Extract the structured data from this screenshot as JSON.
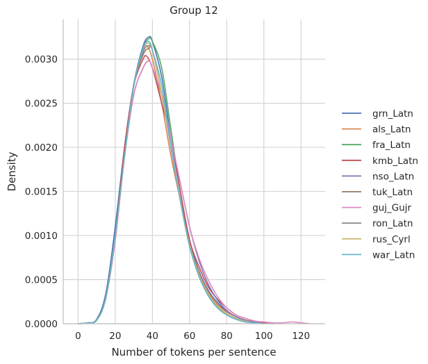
{
  "chart_data": {
    "type": "line",
    "title": "Group 12",
    "xlabel": "Number of tokens per sentence",
    "ylabel": "Density",
    "xlim": [
      -8,
      133
    ],
    "ylim": [
      0,
      0.00345
    ],
    "xticks": [
      0,
      20,
      40,
      60,
      80,
      100,
      120
    ],
    "xtick_labels": [
      "0",
      "20",
      "40",
      "60",
      "80",
      "100",
      "120"
    ],
    "yticks": [
      0,
      0.0005,
      0.001,
      0.0015,
      0.002,
      0.0025,
      0.003
    ],
    "ytick_labels": [
      "0.0000",
      "0.0005",
      "0.0010",
      "0.0015",
      "0.0020",
      "0.0025",
      "0.0030"
    ],
    "grid": true,
    "legend_position": "right",
    "series": [
      {
        "name": "grn_Latn",
        "color": "#4c72b0",
        "x": [
          0,
          5,
          10,
          15,
          20,
          25,
          30,
          35,
          38,
          40,
          45,
          50,
          55,
          60,
          65,
          70,
          75,
          80,
          85,
          90,
          95,
          100,
          105
        ],
        "y": [
          0,
          1e-05,
          5e-05,
          0.00035,
          0.0011,
          0.002,
          0.00272,
          0.00315,
          0.00325,
          0.0032,
          0.0028,
          0.0021,
          0.0015,
          0.00095,
          0.0006,
          0.00038,
          0.00024,
          0.00014,
          8e-05,
          4e-05,
          2e-05,
          1e-05,
          0
        ]
      },
      {
        "name": "als_Latn",
        "color": "#dd8452",
        "x": [
          0,
          5,
          10,
          15,
          20,
          25,
          30,
          35,
          37,
          40,
          45,
          50,
          55,
          60,
          65,
          70,
          75,
          80,
          85,
          90,
          95,
          100,
          105
        ],
        "y": [
          0,
          1e-05,
          4e-05,
          0.0003,
          0.00095,
          0.0019,
          0.0027,
          0.0031,
          0.00315,
          0.003,
          0.0025,
          0.0019,
          0.0014,
          0.0009,
          0.00058,
          0.00036,
          0.00022,
          0.00013,
          8e-05,
          4e-05,
          2e-05,
          1e-05,
          0
        ]
      },
      {
        "name": "fra_Latn",
        "color": "#55a868",
        "x": [
          0,
          5,
          10,
          15,
          20,
          25,
          30,
          35,
          38,
          40,
          45,
          50,
          55,
          60,
          65,
          70,
          75,
          80,
          85,
          90,
          95,
          100
        ],
        "y": [
          0,
          1e-05,
          4e-05,
          0.0003,
          0.001,
          0.0019,
          0.0027,
          0.00312,
          0.00323,
          0.0032,
          0.0029,
          0.0022,
          0.0015,
          0.00092,
          0.00055,
          0.00032,
          0.00018,
          0.0001,
          5e-05,
          2e-05,
          1e-05,
          0
        ]
      },
      {
        "name": "kmb_Latn",
        "color": "#c44e52",
        "x": [
          0,
          5,
          10,
          15,
          20,
          25,
          30,
          35,
          37,
          40,
          45,
          50,
          55,
          60,
          65,
          70,
          75,
          80,
          85,
          90,
          95,
          100,
          105
        ],
        "y": [
          0,
          1e-05,
          4e-05,
          0.0003,
          0.001,
          0.002,
          0.0027,
          0.003,
          0.00303,
          0.0029,
          0.0025,
          0.0021,
          0.0015,
          0.00095,
          0.00065,
          0.00042,
          0.00028,
          0.00018,
          0.0001,
          6e-05,
          3e-05,
          1e-05,
          0
        ]
      },
      {
        "name": "nso_Latn",
        "color": "#8172b3",
        "x": [
          0,
          5,
          10,
          15,
          20,
          25,
          30,
          35,
          38,
          40,
          45,
          50,
          55,
          60,
          65,
          70,
          75,
          80,
          85,
          90,
          95,
          100
        ],
        "y": [
          0,
          1e-05,
          4e-05,
          0.0003,
          0.001,
          0.0019,
          0.0026,
          0.0029,
          0.00298,
          0.0029,
          0.0026,
          0.0021,
          0.0016,
          0.0011,
          0.00072,
          0.00045,
          0.00027,
          0.00015,
          8e-05,
          4e-05,
          2e-05,
          0
        ]
      },
      {
        "name": "tuk_Latn",
        "color": "#937860",
        "x": [
          0,
          5,
          10,
          15,
          20,
          25,
          30,
          35,
          38,
          40,
          45,
          50,
          55,
          60,
          65,
          70,
          75,
          80,
          85,
          90,
          95,
          100
        ],
        "y": [
          0,
          1e-05,
          4e-05,
          0.0003,
          0.001,
          0.0019,
          0.0027,
          0.00305,
          0.00312,
          0.0031,
          0.0026,
          0.002,
          0.0014,
          0.00088,
          0.00055,
          0.00034,
          0.0002,
          0.00011,
          6e-05,
          3e-05,
          1e-05,
          0
        ]
      },
      {
        "name": "guj_Gujr",
        "color": "#da8bc3",
        "x": [
          0,
          5,
          10,
          15,
          20,
          25,
          30,
          35,
          38,
          40,
          45,
          50,
          55,
          60,
          65,
          70,
          75,
          80,
          85,
          90,
          95,
          100,
          105,
          110,
          115,
          120,
          125
        ],
        "y": [
          0,
          1e-05,
          4e-05,
          0.0003,
          0.00095,
          0.0019,
          0.0026,
          0.0029,
          0.00298,
          0.0029,
          0.0026,
          0.0021,
          0.0016,
          0.0011,
          0.00075,
          0.0005,
          0.00031,
          0.00018,
          0.0001,
          6e-05,
          3e-05,
          2e-05,
          1e-05,
          1e-05,
          2e-05,
          1e-05,
          0
        ]
      },
      {
        "name": "ron_Latn",
        "color": "#8c8c8c",
        "x": [
          0,
          5,
          10,
          15,
          20,
          25,
          30,
          35,
          38,
          40,
          45,
          50,
          55,
          60,
          65,
          70,
          75,
          80,
          85,
          90,
          95,
          100
        ],
        "y": [
          0,
          1e-05,
          4e-05,
          0.0003,
          0.001,
          0.0019,
          0.0027,
          0.00308,
          0.00315,
          0.0031,
          0.0026,
          0.002,
          0.0014,
          0.0009,
          0.00056,
          0.00034,
          0.0002,
          0.00011,
          6e-05,
          3e-05,
          1e-05,
          0
        ]
      },
      {
        "name": "rus_Cyrl",
        "color": "#ccb974",
        "x": [
          0,
          5,
          10,
          15,
          20,
          25,
          30,
          35,
          37,
          40,
          45,
          50,
          55,
          60,
          65,
          70,
          75,
          80,
          85,
          90,
          95,
          100
        ],
        "y": [
          0,
          1e-05,
          4e-05,
          0.0003,
          0.001,
          0.0019,
          0.0027,
          0.00312,
          0.00318,
          0.0031,
          0.0026,
          0.002,
          0.0014,
          0.0009,
          0.00056,
          0.00034,
          0.0002,
          0.00011,
          6e-05,
          3e-05,
          1e-05,
          0
        ]
      },
      {
        "name": "war_Latn",
        "color": "#64b5cd",
        "x": [
          0,
          5,
          10,
          15,
          20,
          25,
          30,
          35,
          38,
          40,
          45,
          50,
          55,
          60,
          65,
          70,
          75,
          80,
          85,
          90,
          95,
          100
        ],
        "y": [
          0,
          1e-05,
          4e-05,
          0.0003,
          0.001,
          0.0019,
          0.0027,
          0.00312,
          0.0032,
          0.0031,
          0.0027,
          0.002,
          0.0014,
          0.00088,
          0.00054,
          0.00032,
          0.00018,
          0.0001,
          5e-05,
          2e-05,
          1e-05,
          0
        ]
      }
    ]
  }
}
